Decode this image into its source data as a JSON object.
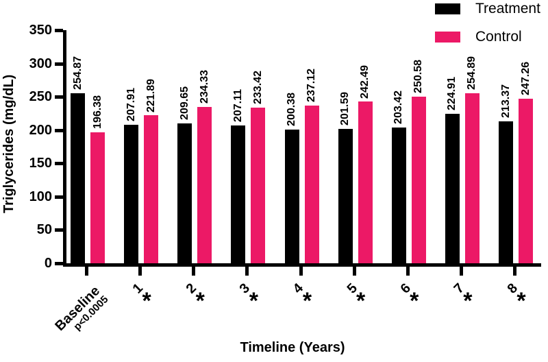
{
  "chart_data": {
    "type": "bar",
    "title": "",
    "xlabel": "Timeline (Years)",
    "ylabel": "Triglycerides (mg/dL)",
    "ylim": [
      0,
      350
    ],
    "ytick_step": 50,
    "grid": false,
    "legend_position": "top-right",
    "bar_value_label_decimals": 2,
    "categories": [
      "Baseline",
      "1",
      "2",
      "3",
      "4",
      "5",
      "6",
      "7",
      "8"
    ],
    "category_sublabels": [
      "p<0.0005",
      "",
      "",
      "",
      "",
      "",
      "",
      "",
      ""
    ],
    "significance_marker": "*",
    "significant": [
      false,
      true,
      true,
      true,
      true,
      true,
      true,
      true,
      true
    ],
    "series": [
      {
        "name": "Treatment",
        "color": "#000000",
        "values": [
          254.87,
          207.91,
          209.65,
          207.11,
          200.38,
          201.59,
          203.42,
          224.91,
          213.37
        ]
      },
      {
        "name": "Control",
        "color": "#EC1966",
        "values": [
          196.38,
          221.89,
          234.33,
          233.42,
          237.12,
          242.49,
          250.58,
          254.89,
          247.26
        ]
      }
    ]
  }
}
